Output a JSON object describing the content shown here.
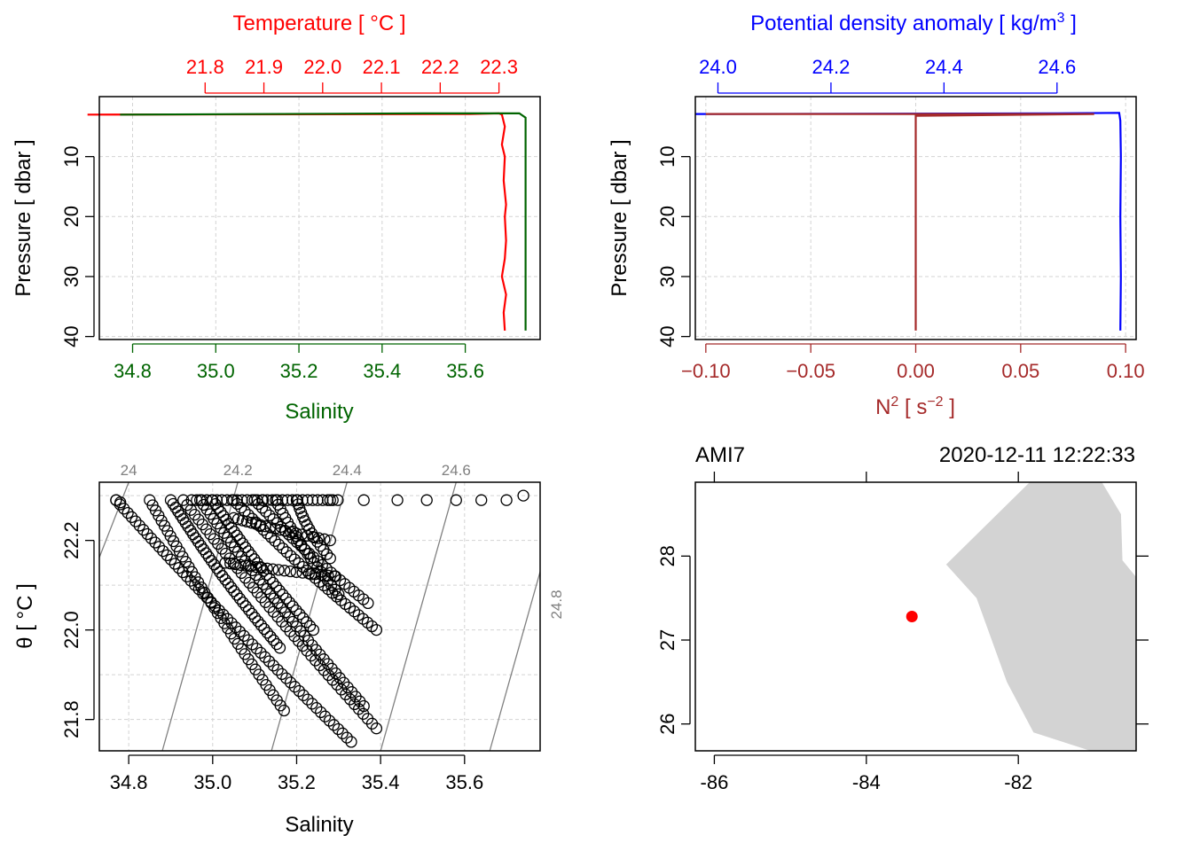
{
  "colors": {
    "temperature": "#ff0000",
    "salinity": "#006400",
    "density": "#0000ff",
    "n2": "#a52a2a",
    "grid": "#d3d3d3",
    "isopycnal": "#808080",
    "land": "#d3d3d3",
    "station": "#ff0000"
  },
  "chart_data": [
    {
      "type": "line",
      "panel": "TS profile",
      "title": "Temperature [ °C ]",
      "xlabel": "Salinity",
      "ylabel": "Pressure [ dbar ]",
      "top_axis_label": "Temperature [ °C ]",
      "bottom_axis_ticks": [
        "34.8",
        "35.0",
        "35.2",
        "35.4",
        "35.6"
      ],
      "top_axis_ticks": [
        "21.8",
        "21.9",
        "22.0",
        "22.1",
        "22.2",
        "22.3"
      ],
      "left_axis_ticks": [
        "10",
        "20",
        "30",
        "40"
      ],
      "xlim_salinity": [
        34.72,
        35.78
      ],
      "xlim_temperature": [
        21.62,
        22.37
      ],
      "ylim_pressure": [
        40.5,
        0
      ],
      "grid": true,
      "series": [
        {
          "name": "Temperature",
          "axis": "top",
          "points": [
            [
              21.6,
              3.0
            ],
            [
              22.25,
              2.9
            ],
            [
              22.3,
              2.8
            ],
            [
              22.305,
              3.0
            ],
            [
              22.31,
              5
            ],
            [
              22.305,
              8
            ],
            [
              22.31,
              10
            ],
            [
              22.308,
              14
            ],
            [
              22.312,
              18
            ],
            [
              22.31,
              20
            ],
            [
              22.312,
              24
            ],
            [
              22.31,
              27
            ],
            [
              22.305,
              30
            ],
            [
              22.312,
              33
            ],
            [
              22.308,
              36
            ],
            [
              22.31,
              39
            ]
          ]
        },
        {
          "name": "Salinity",
          "axis": "bottom",
          "points": [
            [
              34.77,
              3.0
            ],
            [
              35.5,
              2.8
            ],
            [
              35.73,
              2.8
            ],
            [
              35.745,
              3.5
            ],
            [
              35.745,
              10
            ],
            [
              35.745,
              20
            ],
            [
              35.745,
              30
            ],
            [
              35.745,
              39
            ]
          ]
        }
      ]
    },
    {
      "type": "line",
      "panel": "density and N2 profile",
      "title": "Potential density anomaly [ kg/m³ ]",
      "xlabel": "N² [ s⁻² ]",
      "ylabel": "Pressure [ dbar ]",
      "top_axis_label": "Potential density anomaly [ kg/m³ ]",
      "bottom_axis_ticks": [
        "−0.10",
        "−0.05",
        "0.00",
        "0.05",
        "0.10"
      ],
      "top_axis_ticks": [
        "24.0",
        "24.2",
        "24.4",
        "24.6"
      ],
      "left_axis_ticks": [
        "10",
        "20",
        "30",
        "40"
      ],
      "xlim_n2": [
        -0.105,
        0.105
      ],
      "xlim_density": [
        23.96,
        24.74
      ],
      "ylim_pressure": [
        40.5,
        0
      ],
      "grid": true,
      "series": [
        {
          "name": "Potential density anomaly",
          "axis": "top",
          "points": [
            [
              23.96,
              2.9
            ],
            [
              24.6,
              2.8
            ],
            [
              24.71,
              2.7
            ],
            [
              24.712,
              4
            ],
            [
              24.713,
              10
            ],
            [
              24.712,
              20
            ],
            [
              24.713,
              30
            ],
            [
              24.712,
              39
            ]
          ]
        },
        {
          "name": "N2",
          "axis": "bottom",
          "points": [
            [
              -0.1,
              2.9
            ],
            [
              0.0,
              2.9
            ],
            [
              0.085,
              2.9
            ],
            [
              0.0,
              3.2
            ],
            [
              0.0,
              10
            ],
            [
              0.0,
              20
            ],
            [
              0.0,
              30
            ],
            [
              0.0,
              39
            ]
          ]
        }
      ]
    },
    {
      "type": "scatter",
      "panel": "TS diagram",
      "xlabel": "Salinity",
      "ylabel": "θ [ °C ]",
      "xlim": [
        34.73,
        35.78
      ],
      "ylim": [
        21.73,
        22.33
      ],
      "bottom_axis_ticks": [
        "34.8",
        "35.0",
        "35.2",
        "35.4",
        "35.6"
      ],
      "left_axis_ticks": [
        "21.8",
        "22.0",
        "22.2"
      ],
      "isopycnal_labels": [
        "24",
        "24.2",
        "24.4",
        "24.6",
        "24.8"
      ],
      "isopycnals": [
        {
          "label": "24",
          "s_at_top": 34.8,
          "s_at_bottom": 34.55
        },
        {
          "label": "24.2",
          "s_at_top": 35.06,
          "s_at_bottom": 34.88
        },
        {
          "label": "24.4",
          "s_at_top": 35.32,
          "s_at_bottom": 35.14
        },
        {
          "label": "24.6",
          "s_at_top": 35.58,
          "s_at_bottom": 35.4
        },
        {
          "label": "24.8",
          "s_at_top": 35.84,
          "s_at_bottom": 35.66
        }
      ],
      "grid": true,
      "segments": [
        {
          "s0": 34.77,
          "t0": 22.29,
          "s1": 35.33,
          "t1": 21.75,
          "n": 58
        },
        {
          "s0": 34.85,
          "t0": 22.29,
          "s1": 35.17,
          "t1": 21.82,
          "n": 42
        },
        {
          "s0": 34.9,
          "t0": 22.29,
          "s1": 35.16,
          "t1": 21.96,
          "n": 40
        },
        {
          "s0": 34.93,
          "t0": 22.29,
          "s1": 35.39,
          "t1": 21.78,
          "n": 48
        },
        {
          "s0": 34.97,
          "t0": 22.29,
          "s1": 35.36,
          "t1": 21.83,
          "n": 45
        },
        {
          "s0": 35.0,
          "t0": 22.29,
          "s1": 35.24,
          "t1": 22.0,
          "n": 34
        },
        {
          "s0": 35.05,
          "t0": 22.29,
          "s1": 35.39,
          "t1": 22.0,
          "n": 36
        },
        {
          "s0": 35.1,
          "t0": 22.29,
          "s1": 35.37,
          "t1": 22.06,
          "n": 28
        },
        {
          "s0": 35.15,
          "t0": 22.29,
          "s1": 35.3,
          "t1": 22.08,
          "n": 22
        },
        {
          "s0": 35.2,
          "t0": 22.29,
          "s1": 35.28,
          "t1": 22.16,
          "n": 15
        },
        {
          "s0": 35.03,
          "t0": 22.15,
          "s1": 35.29,
          "t1": 22.12,
          "n": 20
        },
        {
          "s0": 35.05,
          "t0": 22.25,
          "s1": 35.28,
          "t1": 22.2,
          "n": 20
        }
      ],
      "points": [
        [
          34.77,
          22.29
        ],
        [
          34.78,
          22.285
        ],
        [
          35.12,
          22.29
        ],
        [
          35.2,
          22.29
        ],
        [
          35.28,
          22.29
        ],
        [
          35.36,
          22.29
        ],
        [
          35.44,
          22.29
        ],
        [
          35.51,
          22.29
        ],
        [
          35.58,
          22.29
        ],
        [
          35.64,
          22.29
        ],
        [
          35.7,
          22.29
        ],
        [
          35.74,
          22.3
        ]
      ]
    },
    {
      "type": "map",
      "panel": "station map",
      "station_label": "AMI7",
      "timestamp": "2020-12-11 12:22:33",
      "xlim_lon": [
        -86.25,
        -80.45
      ],
      "ylim_lat": [
        25.68,
        28.88
      ],
      "bottom_axis_ticks": [
        "-86",
        "-84",
        "-82"
      ],
      "left_axis_ticks": [
        "26",
        "27",
        "28"
      ],
      "station": {
        "lon": -83.4,
        "lat": 27.28
      },
      "land_polygon": [
        [
          -81.85,
          28.88
        ],
        [
          -80.9,
          28.88
        ],
        [
          -80.65,
          28.5
        ],
        [
          -80.63,
          27.95
        ],
        [
          -80.45,
          27.75
        ],
        [
          -80.45,
          25.68
        ],
        [
          -81.05,
          25.68
        ],
        [
          -81.8,
          25.9
        ],
        [
          -82.15,
          26.5
        ],
        [
          -82.55,
          27.5
        ],
        [
          -82.95,
          27.9
        ]
      ]
    }
  ]
}
